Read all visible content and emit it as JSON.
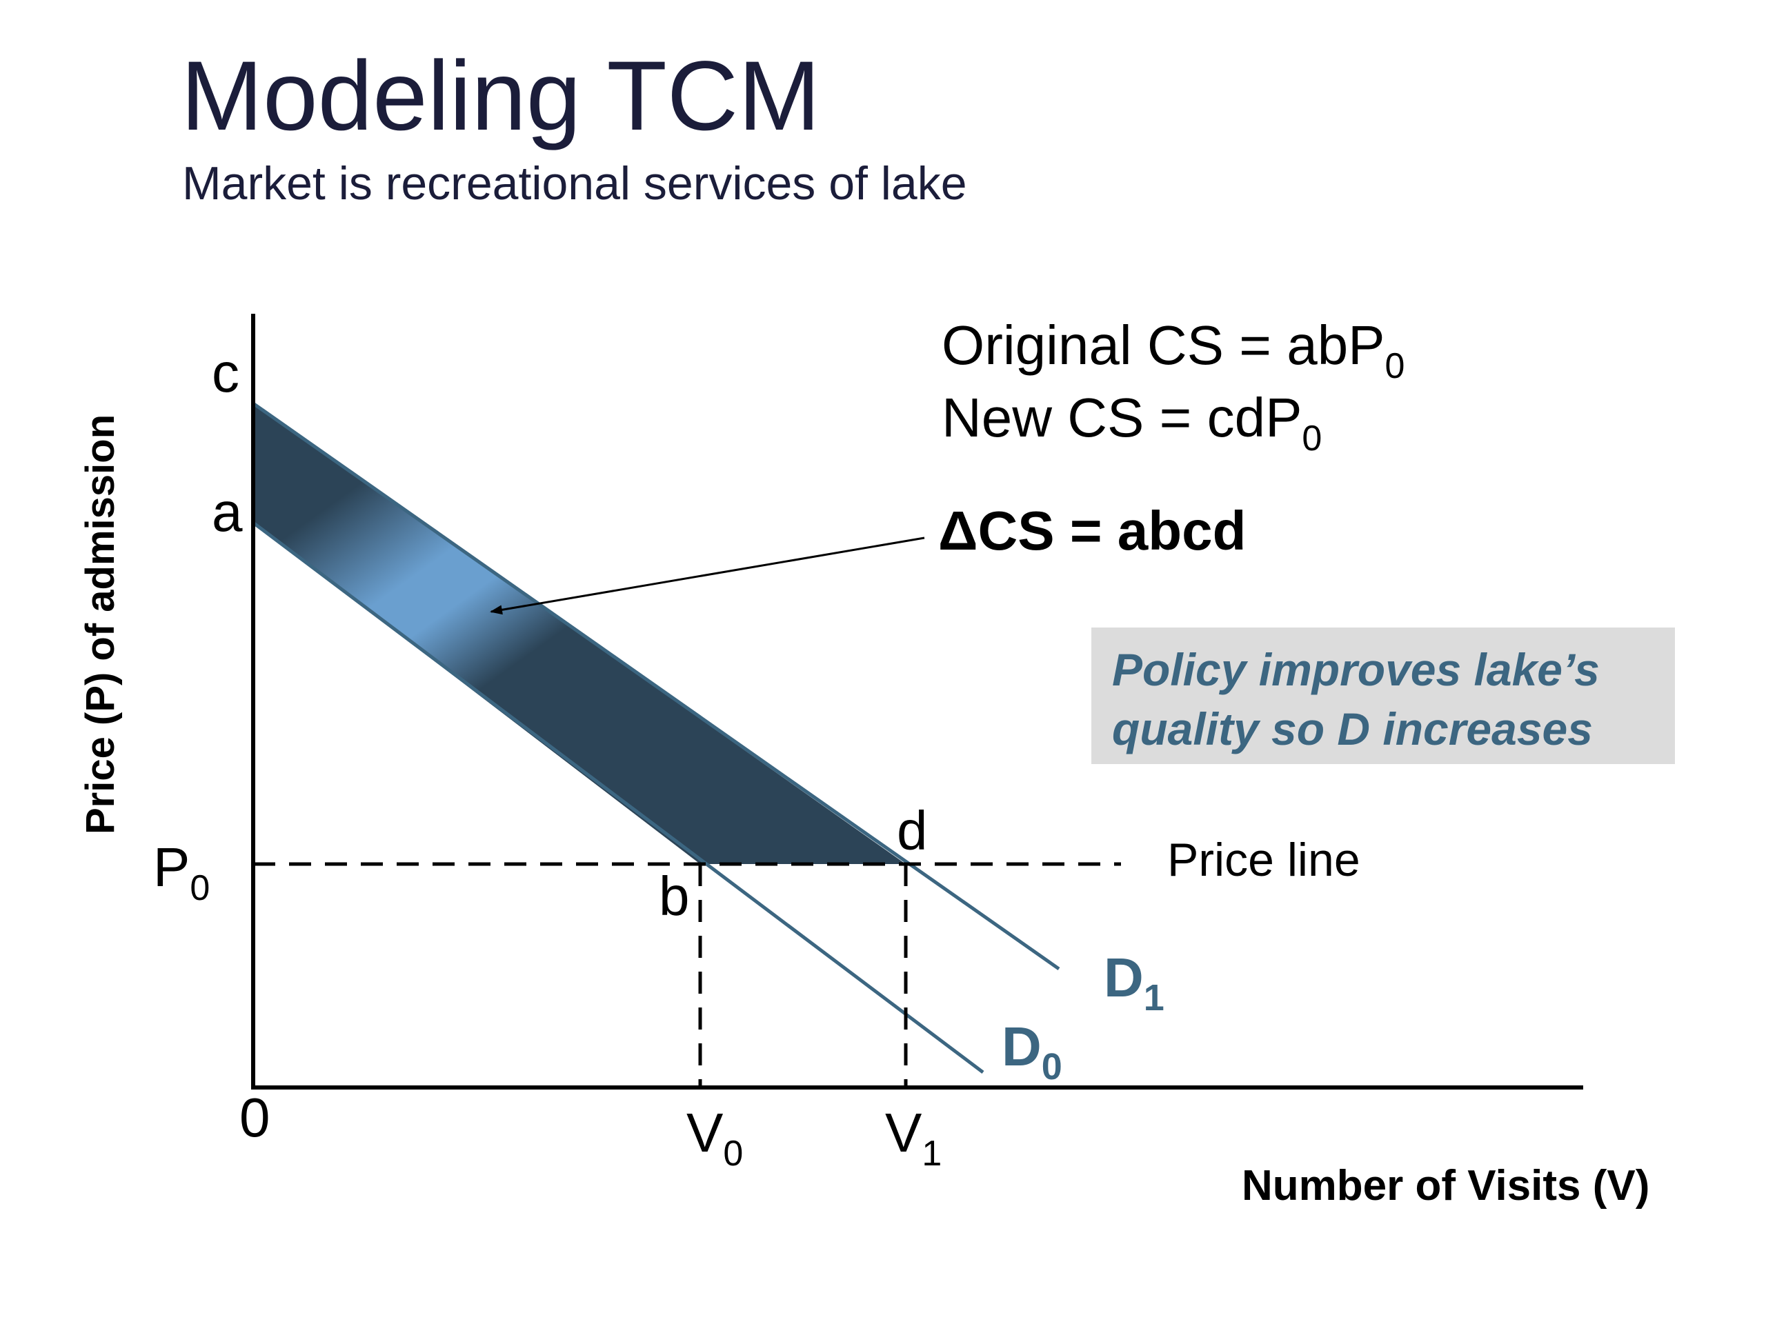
{
  "slide": {
    "title": "Modeling TCM",
    "subtitle": "Market is recreational services of lake"
  },
  "diagram": {
    "y_axis_label": "Price (P) of admission",
    "x_axis_label": "Number of Visits (V)",
    "origin_label": "0",
    "point_labels": {
      "c": "c",
      "a": "a",
      "b": "b",
      "d": "d"
    },
    "price_label": {
      "base": "P",
      "sub": "0"
    },
    "v0_label": {
      "base": "V",
      "sub": "0"
    },
    "v1_label": {
      "base": "V",
      "sub": "1"
    },
    "price_line_label": "Price line",
    "demand_curves": [
      {
        "base": "D",
        "sub": "1"
      },
      {
        "base": "D",
        "sub": "0"
      }
    ],
    "annotations": {
      "original_cs": {
        "text": "Original CS = abP",
        "sub": "0"
      },
      "new_cs": {
        "text": "New CS = cdP",
        "sub": "0"
      },
      "delta_cs": "ΔCS = abcd"
    },
    "callout_lines": [
      "Policy improves lake’s",
      "quality so D increases"
    ],
    "colors": {
      "curve": "#3c6681",
      "band_light": "#6a9fcf",
      "band_dark": "#2c4457",
      "title": "#1b1d3a",
      "callout_bg": "#dcdcdc"
    }
  }
}
